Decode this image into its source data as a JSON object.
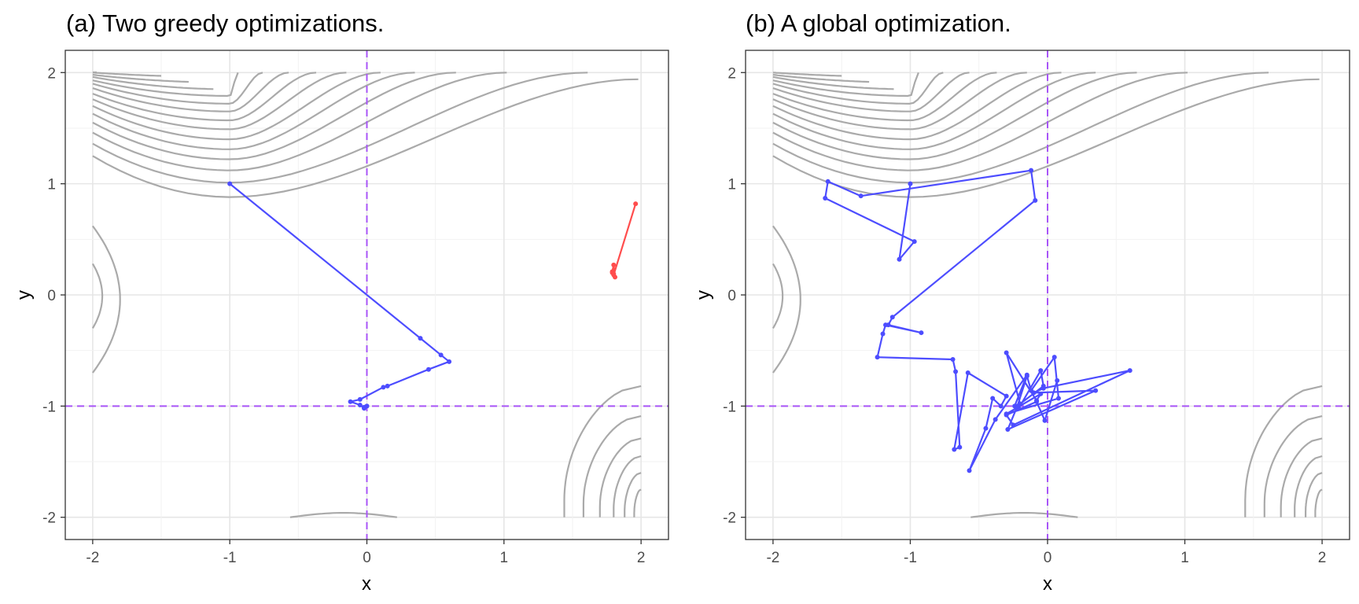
{
  "chart_data": [
    {
      "type": "line",
      "title": "(a) Two greedy optimizations.",
      "xlabel": "x",
      "ylabel": "y",
      "xlim": [
        -2.2,
        2.2
      ],
      "ylim": [
        -2.2,
        2.2
      ],
      "xticks": [
        -2,
        -1,
        0,
        1,
        2
      ],
      "yticks": [
        -2,
        -1,
        0,
        1,
        2
      ],
      "tick_labels_x": [
        "-2",
        "-1",
        "0",
        "1",
        "2"
      ],
      "tick_labels_y": [
        "-2",
        "-1",
        "0",
        "1",
        "2"
      ],
      "grid": true,
      "reference_lines": {
        "x": 0,
        "y": -1,
        "color": "#a855f7",
        "style": "dashed"
      },
      "background": "gray contour lines of the objective function",
      "series": [
        {
          "color": "#4d4dff",
          "x": [
            -1.0,
            0.39,
            0.54,
            0.6,
            0.45,
            0.15,
            0.12,
            -0.05,
            -0.12,
            -0.05,
            -0.02,
            0.0,
            -0.02,
            0.0
          ],
          "y": [
            1.0,
            -0.39,
            -0.54,
            -0.6,
            -0.67,
            -0.82,
            -0.83,
            -0.94,
            -0.96,
            -0.99,
            -1.02,
            -1.0,
            -1.01,
            -1.0
          ]
        },
        {
          "color": "#ff4d4d",
          "x": [
            1.96,
            1.8,
            1.79,
            1.8,
            1.81,
            1.79,
            1.8
          ],
          "y": [
            0.82,
            0.18,
            0.21,
            0.27,
            0.16,
            0.2,
            0.19
          ]
        }
      ]
    },
    {
      "type": "line",
      "title": "(b) A global optimization.",
      "xlabel": "x",
      "ylabel": "y",
      "xlim": [
        -2.2,
        2.2
      ],
      "ylim": [
        -2.2,
        2.2
      ],
      "xticks": [
        -2,
        -1,
        0,
        1,
        2
      ],
      "yticks": [
        -2,
        -1,
        0,
        1,
        2
      ],
      "tick_labels_x": [
        "-2",
        "-1",
        "0",
        "1",
        "2"
      ],
      "tick_labels_y": [
        "-2",
        "-1",
        "0",
        "1",
        "2"
      ],
      "grid": true,
      "reference_lines": {
        "x": 0,
        "y": -1,
        "color": "#a855f7",
        "style": "dashed"
      },
      "background": "gray contour lines of the objective function",
      "series": [
        {
          "color": "#4d4dff",
          "x": [
            -1.0,
            -1.08,
            -0.97,
            -1.62,
            -1.6,
            -1.36,
            -0.12,
            -0.09,
            -1.13,
            -1.16,
            -0.92,
            -1.18,
            -1.2,
            -1.24,
            -0.69,
            -0.67,
            -0.64,
            -0.68,
            -0.58,
            -0.3,
            -0.34,
            -0.4,
            -0.45,
            -0.57,
            -0.38,
            -0.15,
            -0.24,
            -0.21,
            -0.05,
            -0.03,
            -0.2,
            -0.3,
            -0.08,
            -0.05,
            -0.3,
            0.08,
            0.05,
            -0.12,
            -0.15,
            -0.22,
            -0.29,
            0.35,
            -0.1,
            -0.03,
            0.6,
            -0.25,
            -0.3,
            -0.08,
            -0.02,
            0.07
          ],
          "y": [
            1.0,
            0.32,
            0.48,
            0.87,
            1.02,
            0.89,
            1.12,
            0.85,
            -0.2,
            -0.27,
            -0.34,
            -0.27,
            -0.35,
            -0.56,
            -0.58,
            -0.69,
            -1.37,
            -1.39,
            -0.7,
            -0.91,
            -1.0,
            -0.93,
            -1.2,
            -1.58,
            -1.12,
            -0.72,
            -1.0,
            -1.02,
            -0.68,
            -0.82,
            -0.98,
            -0.52,
            -0.95,
            -0.89,
            -1.07,
            -0.93,
            -0.56,
            -0.86,
            -0.73,
            -1.0,
            -1.21,
            -0.86,
            -0.88,
            -0.84,
            -0.68,
            -1.17,
            -1.08,
            -0.96,
            -1.13,
            -0.77
          ]
        }
      ]
    }
  ]
}
